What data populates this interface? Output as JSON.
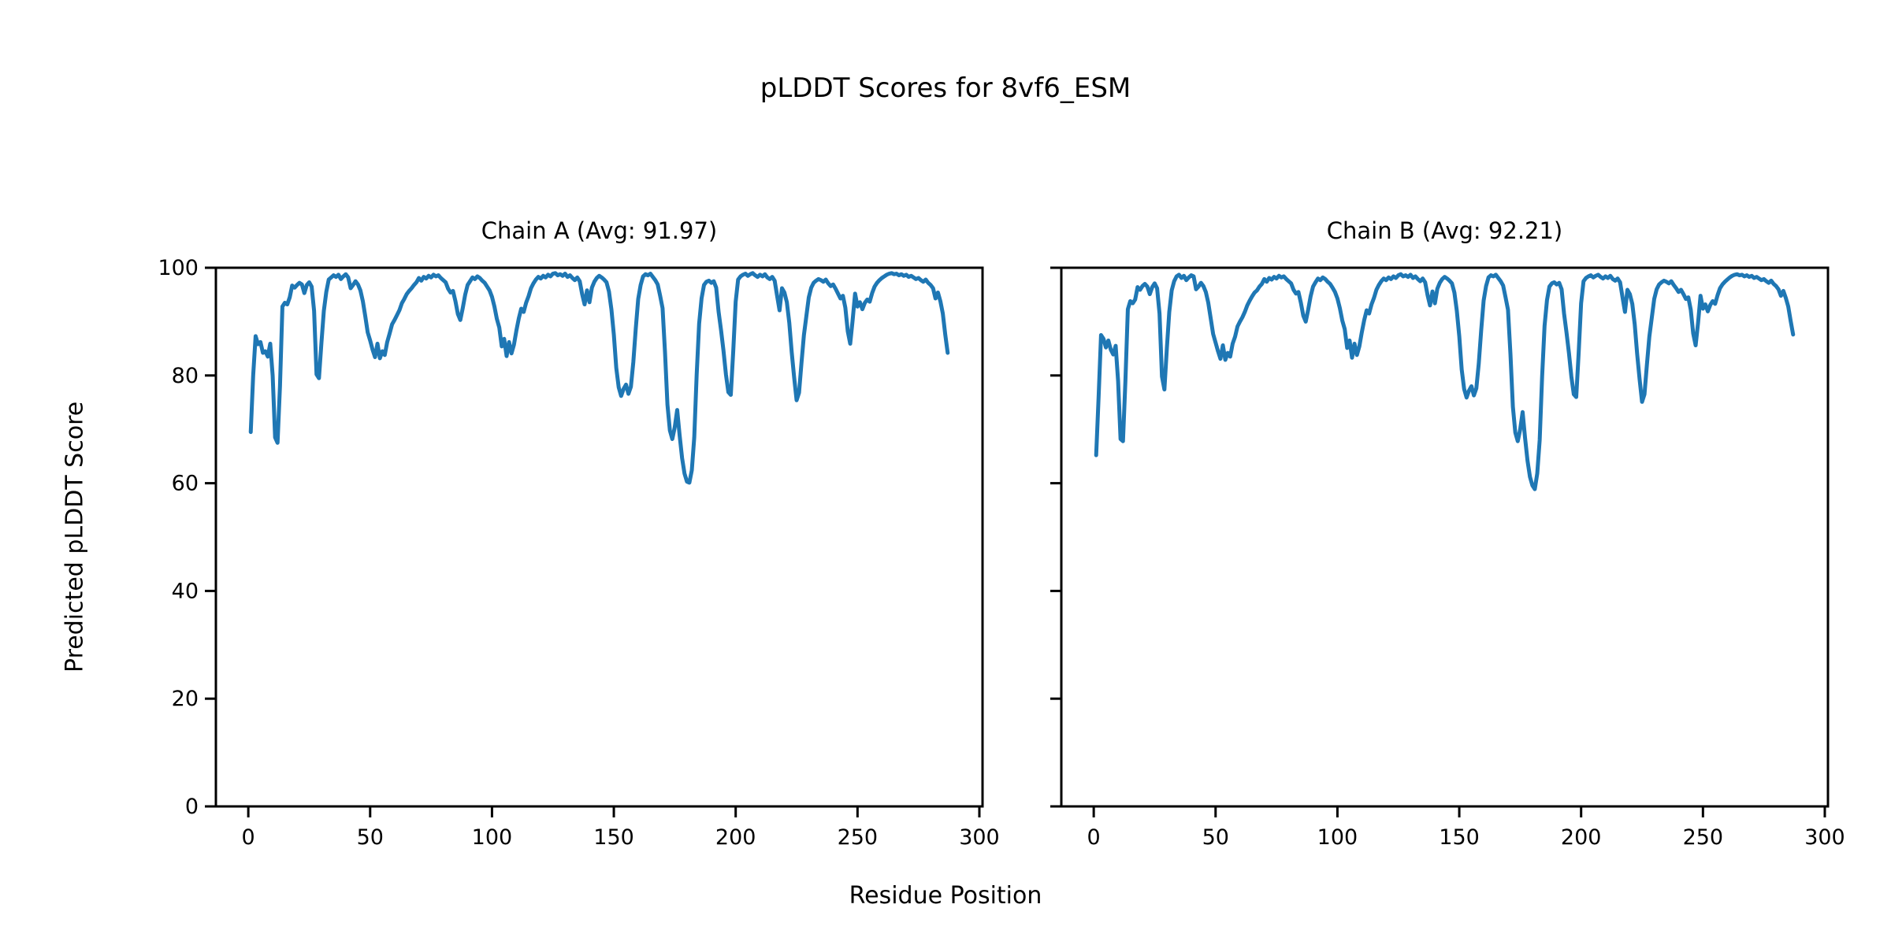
{
  "figure": {
    "title": "pLDDT Scores for 8vf6_ESM",
    "xlabel": "Residue Position",
    "ylabel": "Predicted pLDDT Score",
    "background": "#ffffff",
    "axis_color": "#000000"
  },
  "chart_data": [
    {
      "type": "line",
      "title": "Chain A (Avg: 91.97)",
      "series_name": "Chain A pLDDT",
      "avg": 91.97,
      "color": "#1f77b4",
      "grid": false,
      "legend": false,
      "x_start": 1,
      "x_step": 1,
      "xlim": [
        -13.3,
        301.3
      ],
      "ylim": [
        0,
        100
      ],
      "xticks": [
        0,
        50,
        100,
        150,
        200,
        250,
        300
      ],
      "yticks": [
        0,
        20,
        40,
        60,
        80,
        100
      ],
      "values": [
        69.5,
        80,
        87.3,
        85.8,
        86.2,
        84.2,
        84.5,
        83.5,
        85.9,
        80,
        68.5,
        67.5,
        78,
        92.8,
        93.5,
        93.2,
        94.5,
        96.7,
        96.3,
        96.8,
        97.2,
        96.9,
        95.3,
        96.8,
        97.3,
        96.5,
        92,
        80.2,
        79.5,
        86,
        92,
        95.5,
        97.8,
        98.2,
        98.6,
        98.3,
        98.7,
        97.9,
        98.4,
        98.8,
        98.2,
        96.2,
        96.8,
        97.5,
        96.9,
        95.8,
        93.8,
        91,
        88,
        86.5,
        84.8,
        83.4,
        85.9,
        83.2,
        84.5,
        83.8,
        86.2,
        87.8,
        89.5,
        90.3,
        91.2,
        92.1,
        93.4,
        94.2,
        95.1,
        95.7,
        96.2,
        96.8,
        97.3,
        98.1,
        97.6,
        98.3,
        98,
        98.5,
        98.2,
        98.7,
        98.4,
        98.6,
        98.1,
        97.7,
        97.3,
        96.1,
        95.4,
        95.7,
        93.8,
        91.4,
        90.3,
        92.5,
        95,
        96.8,
        97.5,
        98.2,
        97.9,
        98.4,
        98.1,
        97.6,
        97.2,
        96.5,
        95.8,
        94.6,
        92.8,
        90.5,
        88.9,
        85.4,
        86.8,
        83.6,
        86.2,
        84.1,
        85.7,
        88.3,
        90.6,
        92.4,
        91.8,
        93.5,
        94.7,
        96.2,
        97.1,
        97.8,
        98.3,
        98,
        98.5,
        98.2,
        98.7,
        98.4,
        98.9,
        99,
        98.6,
        98.8,
        98.5,
        98.9,
        98.3,
        98.6,
        98.1,
        97.7,
        98.2,
        97.5,
        95.1,
        93.2,
        95.8,
        93.6,
        96.3,
        97.4,
        98.1,
        98.5,
        98.2,
        97.8,
        97.3,
        95.6,
        92.3,
        87.6,
        81.4,
        77.8,
        76.2,
        77.5,
        78.3,
        76.6,
        77.9,
        82.5,
        88.7,
        94.2,
        96.8,
        98.4,
        98.8,
        98.6,
        98.9,
        98.3,
        97.7,
        96.9,
        94.8,
        92.5,
        84.3,
        74.6,
        69.8,
        68.2,
        70.4,
        73.6,
        68.9,
        64.7,
        61.8,
        60.3,
        60.1,
        62.4,
        68.5,
        80.2,
        89.6,
        94.3,
        96.8,
        97.4,
        97.6,
        97.2,
        97.5,
        96.3,
        91.8,
        88.4,
        84.6,
        80.2,
        76.9,
        76.4,
        84.5,
        93.7,
        97.8,
        98.4,
        98.7,
        98.9,
        98.5,
        98.8,
        99,
        98.6,
        98.3,
        98.7,
        98.4,
        98.8,
        98.2,
        97.9,
        98.3,
        97.6,
        94.8,
        92.1,
        96.2,
        95.4,
        93.6,
        89.8,
        84.3,
        79.6,
        75.4,
        76.8,
        82.3,
        87.5,
        91,
        94.5,
        96.3,
        97.2,
        97.6,
        97.9,
        97.7,
        97.4,
        97.8,
        97.1,
        96.6,
        96.9,
        96.1,
        95.2,
        94.3,
        94.8,
        92.6,
        88.2,
        85.9,
        90.3,
        95.2,
        92.8,
        93.6,
        92.3,
        93.5,
        94.1,
        93.7,
        95.3,
        96.5,
        97.2,
        97.7,
        98.1,
        98.4,
        98.7,
        98.9,
        99,
        98.8,
        98.9,
        98.6,
        98.8,
        98.5,
        98.7,
        98.3,
        98.5,
        98.2,
        97.9,
        98.1,
        97.7,
        97.4,
        97.8,
        97.2,
        96.8,
        96.2,
        94.3,
        95.4,
        93.8,
        91.5,
        87.6,
        84.2
      ]
    },
    {
      "type": "line",
      "title": "Chain B (Avg: 92.21)",
      "series_name": "Chain B pLDDT",
      "avg": 92.21,
      "color": "#1f77b4",
      "grid": false,
      "legend": false,
      "x_start": 1,
      "x_step": 1,
      "xlim": [
        -13.3,
        301.3
      ],
      "ylim": [
        0,
        100
      ],
      "xticks": [
        0,
        50,
        100,
        150,
        200,
        250,
        300
      ],
      "yticks": [
        0,
        20,
        40,
        60,
        80,
        100
      ],
      "values": [
        65.2,
        76,
        87.5,
        86.8,
        85.2,
        86.5,
        84.8,
        83.9,
        85.5,
        79,
        68.2,
        67.8,
        79,
        92.3,
        93.8,
        93.4,
        94.1,
        96.4,
        95.9,
        96.6,
        97,
        96.5,
        95.1,
        96.4,
        97.1,
        96.2,
        91.5,
        79.8,
        77.4,
        85,
        91.8,
        95.8,
        97.5,
        98.4,
        98.7,
        98.1,
        98.5,
        97.7,
        98.2,
        98.6,
        98.4,
        96,
        96.5,
        97.2,
        96.6,
        95.5,
        93.5,
        90.6,
        87.7,
        86.1,
        84.5,
        83.1,
        85.6,
        82.9,
        84.2,
        83.5,
        85.9,
        87.2,
        89.1,
        90,
        90.8,
        91.8,
        93,
        93.9,
        94.7,
        95.4,
        95.8,
        96.5,
        97,
        97.9,
        97.4,
        98.1,
        97.8,
        98.3,
        98,
        98.5,
        98.2,
        98.4,
        97.9,
        97.5,
        97.1,
        95.9,
        95.2,
        95.5,
        93.5,
        91.1,
        90,
        92.2,
        94.7,
        96.5,
        97.3,
        98,
        97.7,
        98.2,
        97.9,
        97.4,
        97,
        96.3,
        95.5,
        94.3,
        92.5,
        90.2,
        88.6,
        85.1,
        86.5,
        83.3,
        85.9,
        83.8,
        85.4,
        88,
        90.3,
        92.1,
        91.5,
        93.2,
        94.4,
        95.9,
        96.8,
        97.5,
        98,
        97.7,
        98.2,
        97.9,
        98.4,
        98.1,
        98.6,
        98.8,
        98.4,
        98.6,
        98.3,
        98.7,
        98.1,
        98.4,
        97.9,
        97.5,
        98,
        97.3,
        94.9,
        93,
        95.6,
        93.4,
        96.1,
        97.2,
        97.9,
        98.3,
        98,
        97.6,
        97.1,
        95.4,
        92,
        87.3,
        81.1,
        77.5,
        75.9,
        77.2,
        78,
        76.3,
        77.6,
        82.2,
        88.4,
        93.9,
        96.6,
        98.2,
        98.6,
        98.4,
        98.7,
        98.1,
        97.5,
        96.7,
        94.5,
        92.2,
        84,
        74.2,
        69.4,
        67.8,
        70,
        73.2,
        68.4,
        64.2,
        61.2,
        59.6,
        58.9,
        61.8,
        68,
        79.8,
        89.2,
        94,
        96.5,
        97.1,
        97.3,
        96.9,
        97.2,
        96,
        91.5,
        88,
        84.2,
        79.8,
        76.5,
        76,
        84.2,
        93.4,
        97.5,
        98.1,
        98.4,
        98.6,
        98.2,
        98.5,
        98.7,
        98.3,
        98,
        98.4,
        98.1,
        98.5,
        97.9,
        97.6,
        98,
        97.3,
        94.5,
        91.8,
        95.9,
        95.1,
        93.3,
        89.5,
        84,
        79.3,
        75.1,
        76.5,
        82,
        87.2,
        90.7,
        94.2,
        96,
        96.9,
        97.3,
        97.6,
        97.4,
        97.1,
        97.5,
        96.8,
        96.2,
        95.5,
        95.9,
        95.1,
        94.2,
        94.5,
        92.2,
        87.8,
        85.6,
        89.8,
        94.8,
        92.4,
        93.2,
        91.9,
        93.1,
        93.8,
        93.3,
        94.9,
        96.2,
        96.9,
        97.4,
        97.8,
        98.2,
        98.5,
        98.7,
        98.8,
        98.6,
        98.7,
        98.4,
        98.6,
        98.3,
        98.5,
        98.1,
        98.3,
        98,
        97.7,
        97.9,
        97.5,
        97.2,
        97.6,
        97,
        96.6,
        96,
        94.8,
        95.7,
        94.4,
        92.8,
        90.1,
        87.6
      ]
    }
  ]
}
